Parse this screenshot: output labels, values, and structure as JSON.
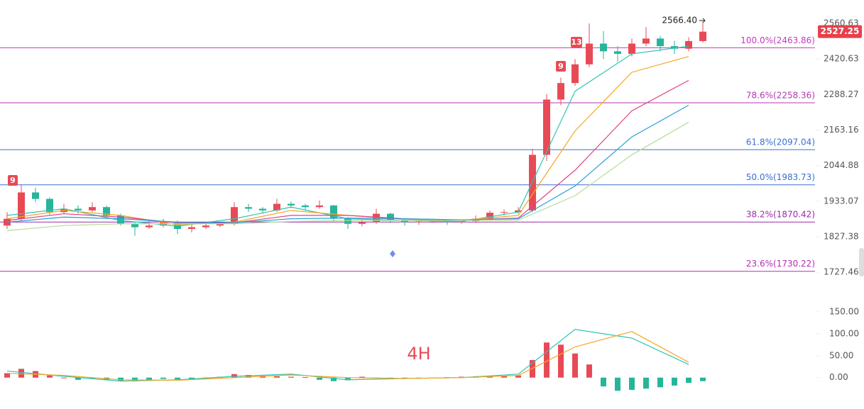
{
  "chart_data": [
    {
      "type": "candlestick",
      "interval": "4H",
      "up_color": "#e84a55",
      "down_color": "#26b59a",
      "ylim": [
        1697,
        2657
      ],
      "log_scale": true,
      "yticks": [
        2560.63,
        2420.63,
        2288.27,
        2163.16,
        2044.88,
        1933.07,
        1827.38,
        1727.46
      ],
      "candles": [
        [
          1860,
          1900,
          1850,
          1880
        ],
        [
          1880,
          1985,
          1875,
          1960
        ],
        [
          1960,
          1975,
          1930,
          1940
        ],
        [
          1940,
          1945,
          1890,
          1900
        ],
        [
          1900,
          1925,
          1895,
          1910
        ],
        [
          1910,
          1920,
          1895,
          1905
        ],
        [
          1905,
          1930,
          1900,
          1915
        ],
        [
          1915,
          1920,
          1880,
          1890
        ],
        [
          1890,
          1895,
          1860,
          1865
        ],
        [
          1865,
          1870,
          1830,
          1855
        ],
        [
          1855,
          1875,
          1850,
          1860
        ],
        [
          1860,
          1880,
          1855,
          1870
        ],
        [
          1870,
          1875,
          1835,
          1850
        ],
        [
          1850,
          1862,
          1840,
          1855
        ],
        [
          1855,
          1868,
          1850,
          1860
        ],
        [
          1860,
          1870,
          1855,
          1865
        ],
        [
          1865,
          1930,
          1860,
          1915
        ],
        [
          1915,
          1925,
          1900,
          1910
        ],
        [
          1910,
          1915,
          1895,
          1905
        ],
        [
          1905,
          1940,
          1900,
          1925
        ],
        [
          1925,
          1932,
          1912,
          1920
        ],
        [
          1920,
          1925,
          1905,
          1915
        ],
        [
          1915,
          1935,
          1910,
          1920
        ],
        [
          1920,
          1922,
          1870,
          1880
        ],
        [
          1880,
          1885,
          1850,
          1865
        ],
        [
          1865,
          1878,
          1858,
          1870
        ],
        [
          1870,
          1910,
          1865,
          1895
        ],
        [
          1895,
          1898,
          1868,
          1875
        ],
        [
          1875,
          1880,
          1860,
          1870
        ],
        [
          1870,
          1878,
          1862,
          1872
        ],
        [
          1872,
          1880,
          1868,
          1875
        ],
        [
          1875,
          1878,
          1862,
          1870
        ],
        [
          1870,
          1878,
          1865,
          1873
        ],
        [
          1873,
          1890,
          1868,
          1880
        ],
        [
          1880,
          1905,
          1876,
          1898
        ],
        [
          1898,
          1908,
          1890,
          1900
        ],
        [
          1900,
          1915,
          1895,
          1905
        ],
        [
          1905,
          2100,
          1900,
          2080
        ],
        [
          2080,
          2290,
          2060,
          2270
        ],
        [
          2270,
          2350,
          2250,
          2330
        ],
        [
          2330,
          2420,
          2320,
          2400
        ],
        [
          2400,
          2560,
          2390,
          2480
        ],
        [
          2480,
          2530,
          2420,
          2450
        ],
        [
          2450,
          2470,
          2410,
          2440
        ],
        [
          2440,
          2500,
          2430,
          2480
        ],
        [
          2480,
          2545,
          2470,
          2500
        ],
        [
          2500,
          2510,
          2450,
          2470
        ],
        [
          2470,
          2490,
          2440,
          2460
        ],
        [
          2460,
          2505,
          2450,
          2490
        ],
        [
          2490,
          2566.4,
          2485,
          2527.25
        ]
      ],
      "series": [
        {
          "color": "#2ec4b0",
          "values": [
            1890,
            1910,
            1875,
            1858,
            1880,
            1915,
            1880,
            1875,
            1872,
            1900,
            2300,
            2440,
            2470
          ]
        },
        {
          "color": "#f5a623",
          "values": [
            1880,
            1905,
            1890,
            1862,
            1870,
            1905,
            1890,
            1878,
            1875,
            1890,
            2160,
            2370,
            2430
          ]
        },
        {
          "color": "#e0408a",
          "values": [
            1875,
            1895,
            1885,
            1868,
            1868,
            1890,
            1890,
            1880,
            1876,
            1882,
            2030,
            2230,
            2340
          ]
        },
        {
          "color": "#2a9fd6",
          "values": [
            1870,
            1885,
            1880,
            1870,
            1868,
            1880,
            1882,
            1880,
            1877,
            1880,
            1980,
            2140,
            2250
          ]
        },
        {
          "color": "#b5dc9a",
          "values": [
            1845,
            1860,
            1865,
            1865,
            1865,
            1872,
            1875,
            1875,
            1875,
            1876,
            1950,
            2080,
            2190
          ]
        }
      ],
      "fib_levels": [
        {
          "label": "100.0%(2463.86)",
          "value": 2463.86,
          "color": "#c23ac2"
        },
        {
          "label": "78.6%(2258.36)",
          "value": 2258.36,
          "color": "#b23ab2"
        },
        {
          "label": "61.8%(2097.04)",
          "value": 2097.04,
          "color": "#3a6fd0"
        },
        {
          "label": "50.0%(1983.73)",
          "value": 1983.73,
          "color": "#3a6fd0"
        },
        {
          "label": "38.2%(1870.42)",
          "value": 1870.42,
          "color": "#9b2aa6"
        },
        {
          "label": "23.6%(1730.22)",
          "value": 1730.22,
          "color": "#b42fb4"
        }
      ],
      "high": {
        "value": 2566.4,
        "label": "2566.40"
      },
      "last_price": 2527.25,
      "annotations": [
        "9",
        "9",
        "13"
      ]
    },
    {
      "type": "macd",
      "ylim": [
        -44,
        182
      ],
      "yticks": [
        {
          "value": 150,
          "label": "150.00"
        },
        {
          "value": 100,
          "label": "100.00"
        },
        {
          "value": 50,
          "label": "50.00"
        },
        {
          "value": 0,
          "label": "0.00"
        }
      ],
      "histogram": [
        10,
        20,
        15,
        5,
        0,
        -5,
        -3,
        -5,
        -8,
        -8,
        -5,
        -3,
        -4,
        -3,
        -2,
        2,
        8,
        6,
        4,
        3,
        2,
        1,
        -5,
        -8,
        -6,
        2,
        -2,
        -3,
        -2,
        -1,
        0,
        1,
        2,
        3,
        3,
        4,
        5,
        40,
        80,
        75,
        55,
        30,
        -20,
        -30,
        -28,
        -25,
        -22,
        -18,
        -12,
        -8
      ],
      "series": [
        {
          "color": "#2ec4b0",
          "values": [
            15,
            3,
            -8,
            -5,
            3,
            8,
            -5,
            -2,
            0,
            8,
            110,
            90,
            30
          ]
        },
        {
          "color": "#f5a623",
          "values": [
            10,
            5,
            -5,
            -6,
            0,
            6,
            0,
            -2,
            0,
            5,
            70,
            105,
            35
          ]
        }
      ]
    }
  ]
}
